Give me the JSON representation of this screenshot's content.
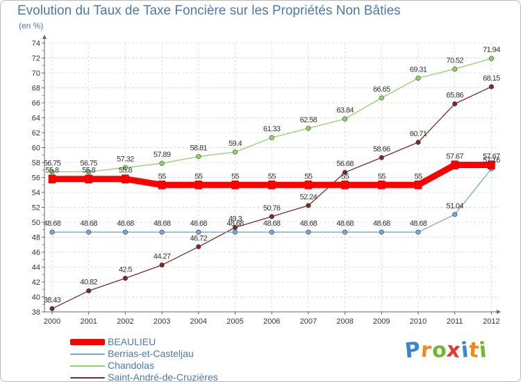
{
  "title": "Evolution du Taux de Taxe Foncière sur les Propriétés Non Bâties",
  "unit_label": "(en %)",
  "logo": {
    "letters": [
      "P",
      "r",
      "o",
      "x",
      "i",
      "t",
      "i"
    ],
    "colors": [
      "#3f86c9",
      "#f08a1c",
      "#74b52d",
      "#e13a2b",
      "#3f86c9",
      "#f08a1c",
      "#74b52d"
    ]
  },
  "chart_data": {
    "type": "line",
    "title": "Evolution du Taux de Taxe Foncière sur les Propriétés Non Bâties",
    "ylabel": "(en %)",
    "xlabel": "",
    "ylim": [
      38,
      74
    ],
    "yticks": [
      38,
      40,
      42,
      44,
      46,
      48,
      50,
      52,
      54,
      56,
      58,
      60,
      62,
      64,
      66,
      68,
      70,
      72,
      74
    ],
    "categories": [
      "2000",
      "2001",
      "2002",
      "2003",
      "2004",
      "2005",
      "2006",
      "2007",
      "2008",
      "2009",
      "2010",
      "2011",
      "2012"
    ],
    "grid": true,
    "legend_position": "bottom-left",
    "series": [
      {
        "name": "BEAULIEU",
        "color": "#ff0000",
        "values": [
          55.8,
          55.8,
          55.8,
          55,
          55,
          55,
          55,
          55,
          55,
          55,
          55,
          57.67,
          57.67
        ],
        "labels": [
          "55.8",
          "55.8",
          "55.8",
          "55",
          "55",
          "55",
          "55",
          "55",
          "55",
          "55",
          "55",
          "57.67",
          "57.67"
        ]
      },
      {
        "name": "Berrias-et-Casteljau",
        "color": "#6fa8dc",
        "values": [
          48.68,
          48.68,
          48.68,
          48.68,
          48.68,
          48.68,
          48.68,
          48.68,
          48.68,
          48.68,
          48.68,
          51.04,
          57.16
        ],
        "labels": [
          "48.68",
          "48.68",
          "48.68",
          "48.68",
          "48.68",
          "48.68",
          "48.68",
          "48.68",
          "48.68",
          "48.68",
          "48.68",
          "51.04",
          "57.16"
        ]
      },
      {
        "name": "Chandolas",
        "color": "#8fd16a",
        "values": [
          56.75,
          56.75,
          57.32,
          57.89,
          58.81,
          59.4,
          61.33,
          62.58,
          63.84,
          66.65,
          69.31,
          70.52,
          71.94
        ],
        "labels": [
          "56.75",
          "56.75",
          "57.32",
          "57.89",
          "58.81",
          "59.4",
          "61.33",
          "62.58",
          "63.84",
          "66.65",
          "69.31",
          "70.52",
          "71.94"
        ]
      },
      {
        "name": "Saint-André-de-Cruzières",
        "color": "#7a2a2a",
        "values": [
          38.43,
          40.82,
          42.5,
          44.27,
          46.72,
          49.3,
          50.76,
          52.24,
          56.68,
          58.66,
          60.71,
          65.86,
          68.15
        ],
        "labels": [
          "38.43",
          "40.82",
          "42.5",
          "44.27",
          "46.72",
          "49.3",
          "50.76",
          "52.24",
          "56.68",
          "58.66",
          "60.71",
          "65.86",
          "68.15"
        ]
      }
    ]
  }
}
